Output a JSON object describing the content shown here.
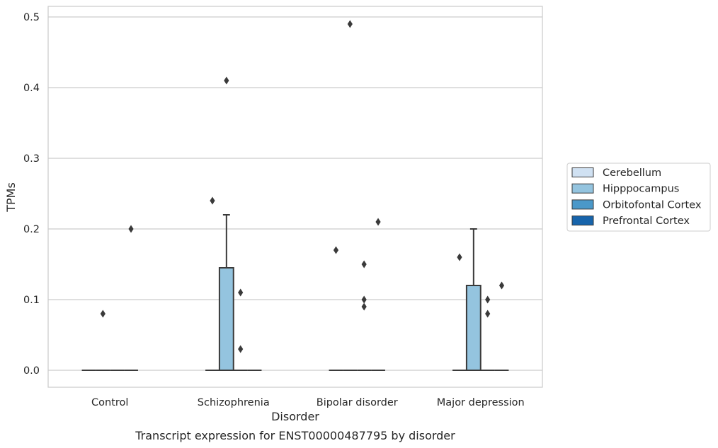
{
  "chart_data": {
    "type": "box",
    "caption": "Transcript expression for ENST00000487795 by disorder",
    "xlabel": "Disorder",
    "ylabel": "TPMs",
    "ylim": [
      -0.024,
      0.515
    ],
    "yticks": [
      0.0,
      0.1,
      0.2,
      0.3,
      0.4,
      0.5
    ],
    "ytick_labels": [
      "0.0",
      "0.1",
      "0.2",
      "0.3",
      "0.4",
      "0.5"
    ],
    "grid": "horizontal",
    "legend_position": "right",
    "categories": [
      "Control",
      "Schizophrenia",
      "Bipolar disorder",
      "Major depression"
    ],
    "series": [
      {
        "name": "Cerebellum",
        "color": "#d0e1f2",
        "boxes": [
          {
            "q1": 0,
            "median": 0,
            "q3": 0,
            "whisker_low": 0,
            "whisker_high": 0,
            "outliers": []
          },
          {
            "q1": 0,
            "median": 0,
            "q3": 0,
            "whisker_low": 0,
            "whisker_high": 0,
            "outliers": [
              0.24
            ]
          },
          {
            "q1": 0,
            "median": 0,
            "q3": 0,
            "whisker_low": 0,
            "whisker_high": 0,
            "outliers": [
              0.17
            ]
          },
          {
            "q1": 0,
            "median": 0,
            "q3": 0,
            "whisker_low": 0,
            "whisker_high": 0,
            "outliers": [
              0.16
            ]
          }
        ]
      },
      {
        "name": "Hipppocampus",
        "color": "#94c4df",
        "boxes": [
          {
            "q1": 0,
            "median": 0,
            "q3": 0,
            "whisker_low": 0,
            "whisker_high": 0,
            "outliers": [
              0.08
            ]
          },
          {
            "q1": 0,
            "median": 0,
            "q3": 0.145,
            "whisker_low": 0,
            "whisker_high": 0.22,
            "outliers": [
              0.41
            ]
          },
          {
            "q1": 0,
            "median": 0,
            "q3": 0,
            "whisker_low": 0,
            "whisker_high": 0,
            "outliers": [
              0.49
            ]
          },
          {
            "q1": 0,
            "median": 0,
            "q3": 0.12,
            "whisker_low": 0,
            "whisker_high": 0.2,
            "outliers": []
          }
        ]
      },
      {
        "name": "Orbitofontal Cortex",
        "color": "#4a98c9",
        "boxes": [
          {
            "q1": 0,
            "median": 0,
            "q3": 0,
            "whisker_low": 0,
            "whisker_high": 0,
            "outliers": []
          },
          {
            "q1": 0,
            "median": 0,
            "q3": 0,
            "whisker_low": 0,
            "whisker_high": 0,
            "outliers": [
              0.11,
              0.03
            ]
          },
          {
            "q1": 0,
            "median": 0,
            "q3": 0,
            "whisker_low": 0,
            "whisker_high": 0,
            "outliers": [
              0.15,
              0.1,
              0.09
            ]
          },
          {
            "q1": 0,
            "median": 0,
            "q3": 0,
            "whisker_low": 0,
            "whisker_high": 0,
            "outliers": [
              0.1,
              0.08
            ]
          }
        ]
      },
      {
        "name": "Prefrontal Cortex",
        "color": "#1764ab",
        "boxes": [
          {
            "q1": 0,
            "median": 0,
            "q3": 0,
            "whisker_low": 0,
            "whisker_high": 0,
            "outliers": [
              0.2
            ]
          },
          {
            "q1": 0,
            "median": 0,
            "q3": 0,
            "whisker_low": 0,
            "whisker_high": 0,
            "outliers": []
          },
          {
            "q1": 0,
            "median": 0,
            "q3": 0,
            "whisker_low": 0,
            "whisker_high": 0,
            "outliers": [
              0.21
            ]
          },
          {
            "q1": 0,
            "median": 0,
            "q3": 0,
            "whisker_low": 0,
            "whisker_high": 0,
            "outliers": [
              0.12
            ]
          }
        ]
      }
    ]
  }
}
